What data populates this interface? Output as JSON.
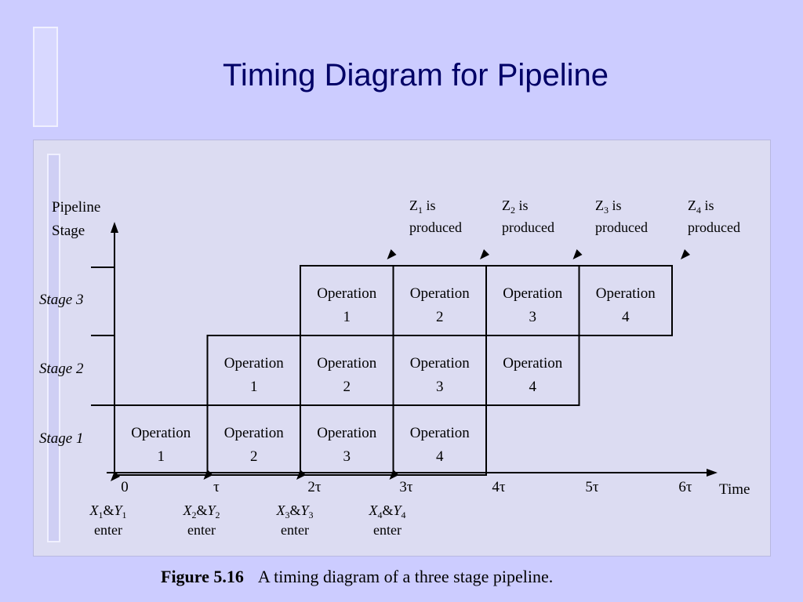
{
  "title": "Timing Diagram for Pipeline",
  "figure": {
    "y_axis_label": [
      "Pipeline",
      "Stage"
    ],
    "x_axis_label": "Time",
    "stages": [
      {
        "name": "Stage 1",
        "operations": [
          "1",
          "2",
          "3",
          "4"
        ]
      },
      {
        "name": "Stage 2",
        "operations": [
          "1",
          "2",
          "3",
          "4"
        ]
      },
      {
        "name": "Stage 3",
        "operations": [
          "1",
          "2",
          "3",
          "4"
        ]
      }
    ],
    "operation_word": "Operation",
    "time_ticks": [
      "0",
      "τ",
      "2τ",
      "3τ",
      "4τ",
      "5τ",
      "6τ"
    ],
    "inputs": [
      {
        "x": "X",
        "y": "Y",
        "n": "1",
        "label": "enter"
      },
      {
        "x": "X",
        "y": "Y",
        "n": "2",
        "label": "enter"
      },
      {
        "x": "X",
        "y": "Y",
        "n": "3",
        "label": "enter"
      },
      {
        "x": "X",
        "y": "Y",
        "n": "4",
        "label": "enter"
      }
    ],
    "outputs": [
      {
        "z": "Z",
        "n": "1",
        "is": "is",
        "label": "produced"
      },
      {
        "z": "Z",
        "n": "2",
        "is": "is",
        "label": "produced"
      },
      {
        "z": "Z",
        "n": "3",
        "is": "is",
        "label": "produced"
      },
      {
        "z": "Z",
        "n": "4",
        "is": "is",
        "label": "produced"
      }
    ]
  },
  "caption": {
    "label": "Figure 5.16",
    "text": "A timing diagram of a three stage pipeline."
  }
}
